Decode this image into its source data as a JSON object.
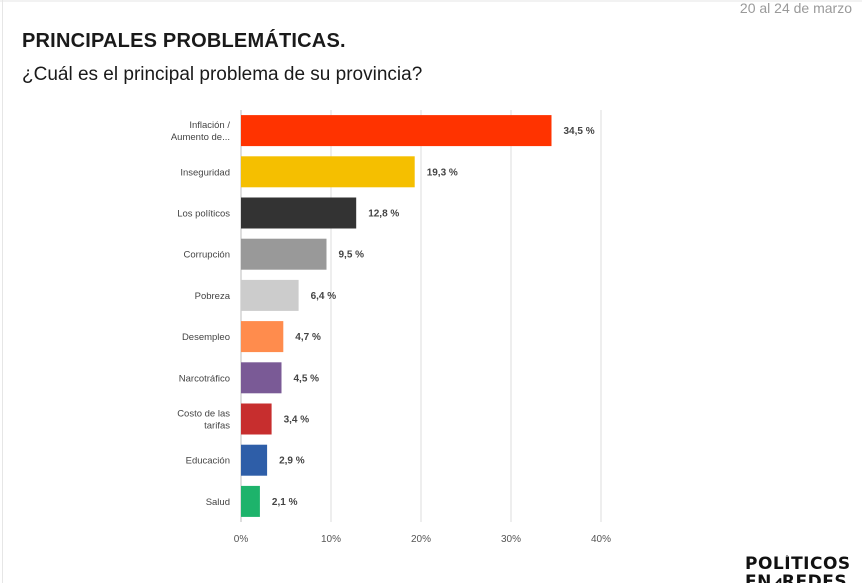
{
  "header": {
    "date_range": "20 al 24 de marzo",
    "title": "PRINCIPALES PROBLEMÁTICAS.",
    "subtitle": "¿Cuál es el principal problema de su provincia?"
  },
  "logo": {
    "line1": "POLÍTICOS",
    "line2": "EN⩘REDES"
  },
  "chart_data": {
    "type": "bar",
    "orientation": "horizontal",
    "categories": [
      [
        "Inflación /",
        "Aumento de..."
      ],
      [
        "Inseguridad"
      ],
      [
        "Los políticos"
      ],
      [
        "Corrupción"
      ],
      [
        "Pobreza"
      ],
      [
        "Desempleo"
      ],
      [
        "Narcotráfico"
      ],
      [
        "Costo de las",
        "tarifas"
      ],
      [
        "Educación"
      ],
      [
        "Salud"
      ]
    ],
    "values": [
      34.5,
      19.3,
      12.8,
      9.5,
      6.4,
      4.7,
      4.5,
      3.4,
      2.9,
      2.1
    ],
    "value_labels": [
      "34,5 %",
      "19,3 %",
      "12,8 %",
      "9,5 %",
      "6,4 %",
      "4,7 %",
      "4,5 %",
      "3,4 %",
      "2,9 %",
      "2,1 %"
    ],
    "colors": [
      "#ff3300",
      "#f5bf00",
      "#333333",
      "#999999",
      "#cccccc",
      "#ff8c4d",
      "#7a5a96",
      "#c72e2e",
      "#2e5ea8",
      "#1db36b"
    ],
    "xlim": [
      0,
      40
    ],
    "x_ticks": [
      0,
      10,
      20,
      30,
      40
    ],
    "x_tick_labels": [
      "0%",
      "10%",
      "20%",
      "30%",
      "40%"
    ],
    "grid": true,
    "legend": "none"
  }
}
